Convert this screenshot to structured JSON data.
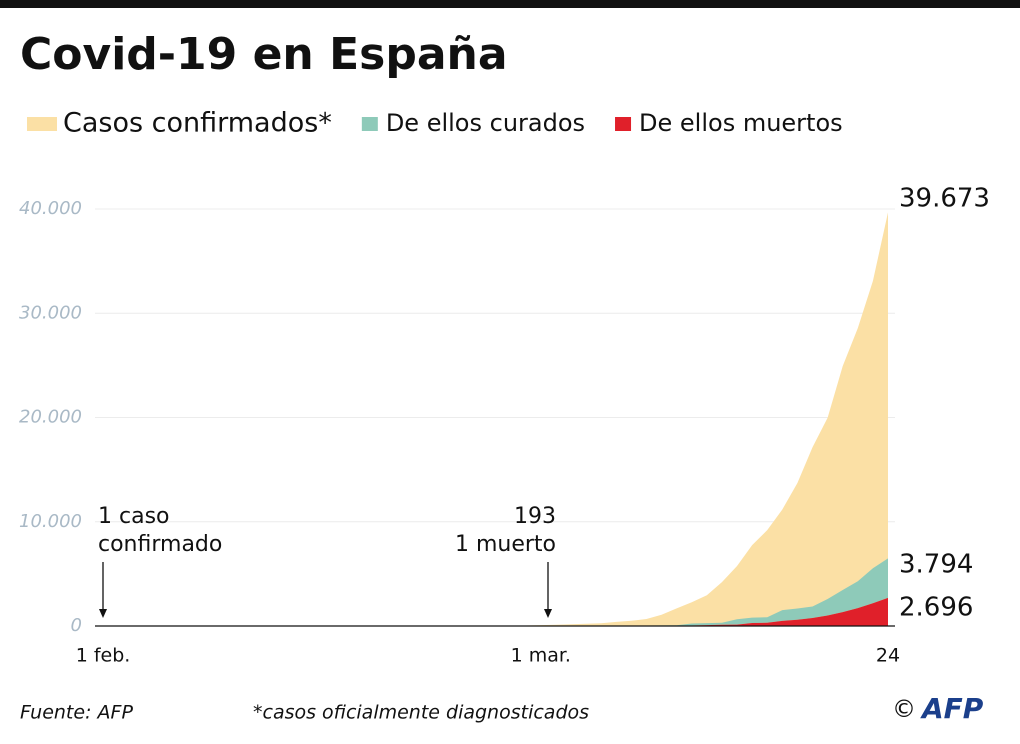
{
  "chart_data": {
    "type": "area",
    "title": "Covid-19 en España",
    "categories": [
      "1 feb.",
      null,
      null,
      null,
      null,
      null,
      null,
      null,
      null,
      null,
      null,
      null,
      null,
      null,
      null,
      null,
      null,
      null,
      null,
      null,
      null,
      null,
      null,
      null,
      null,
      null,
      null,
      null,
      null,
      "1 mar.",
      null,
      null,
      null,
      null,
      null,
      null,
      null,
      null,
      null,
      null,
      null,
      null,
      null,
      null,
      null,
      null,
      null,
      null,
      null,
      null,
      null,
      null,
      "24"
    ],
    "series": [
      {
        "name": "Casos confirmados*",
        "color": "#fbe0a5",
        "values": [
          1,
          1,
          1,
          1,
          1,
          1,
          1,
          1,
          2,
          2,
          2,
          2,
          2,
          2,
          2,
          2,
          2,
          2,
          2,
          2,
          2,
          2,
          2,
          3,
          6,
          13,
          15,
          32,
          45,
          84,
          120,
          165,
          222,
          259,
          400,
          500,
          673,
          1073,
          1695,
          2277,
          2950,
          4209,
          5753,
          7753,
          9191,
          11178,
          13716,
          17147,
          19980,
          24926,
          28572,
          33089,
          39673
        ],
        "value_labels": [
          null,
          null,
          null,
          null,
          null,
          null,
          null,
          null,
          null,
          null,
          null,
          null,
          null,
          null,
          null,
          null,
          null,
          null,
          null,
          null,
          null,
          null,
          null,
          null,
          null,
          null,
          null,
          null,
          null,
          null,
          null,
          null,
          null,
          null,
          null,
          null,
          null,
          null,
          null,
          null,
          null,
          null,
          null,
          null,
          null,
          null,
          null,
          null,
          null,
          null,
          null,
          null,
          "39.673"
        ]
      },
      {
        "name": "De ellos curados",
        "color": "#8ecab9",
        "values": [
          0,
          0,
          0,
          0,
          0,
          0,
          0,
          0,
          0,
          0,
          0,
          0,
          0,
          0,
          0,
          0,
          0,
          0,
          0,
          0,
          0,
          0,
          0,
          0,
          0,
          0,
          0,
          0,
          0,
          2,
          2,
          2,
          2,
          2,
          2,
          30,
          30,
          32,
          32,
          183,
          189,
          193,
          517,
          517,
          530,
          1028,
          1081,
          1107,
          1588,
          2125,
          2575,
          3355,
          3794
        ],
        "value_labels": [
          null,
          null,
          null,
          null,
          null,
          null,
          null,
          null,
          null,
          null,
          null,
          null,
          null,
          null,
          null,
          null,
          null,
          null,
          null,
          null,
          null,
          null,
          null,
          null,
          null,
          null,
          null,
          null,
          null,
          null,
          null,
          null,
          null,
          null,
          null,
          null,
          null,
          null,
          null,
          null,
          null,
          null,
          null,
          null,
          null,
          null,
          null,
          null,
          null,
          null,
          null,
          null,
          "3.794"
        ]
      },
      {
        "name": "De ellos muertos",
        "color": "#e0202a",
        "values": [
          0,
          0,
          0,
          0,
          0,
          0,
          0,
          0,
          0,
          0,
          0,
          0,
          0,
          0,
          0,
          0,
          0,
          0,
          0,
          0,
          0,
          0,
          0,
          0,
          0,
          0,
          0,
          0,
          0,
          0,
          0,
          1,
          2,
          3,
          5,
          10,
          17,
          28,
          35,
          54,
          84,
          120,
          136,
          288,
          309,
          491,
          598,
          767,
          1002,
          1326,
          1720,
          2182,
          2696
        ],
        "value_labels": [
          null,
          null,
          null,
          null,
          null,
          null,
          null,
          null,
          null,
          null,
          null,
          null,
          null,
          null,
          null,
          null,
          null,
          null,
          null,
          null,
          null,
          null,
          null,
          null,
          null,
          null,
          null,
          null,
          null,
          null,
          null,
          null,
          null,
          null,
          null,
          null,
          null,
          null,
          null,
          null,
          null,
          null,
          null,
          null,
          null,
          null,
          null,
          null,
          null,
          null,
          null,
          null,
          "2.696"
        ]
      }
    ],
    "ylim": [
      0,
      40000
    ],
    "yticks": [
      0,
      {
        "value": 10000,
        "label": "10.000"
      },
      {
        "value": 20000,
        "label": "20.000"
      },
      {
        "value": 30000,
        "label": "30.000"
      },
      {
        "value": 40000,
        "label": "40.000"
      }
    ],
    "grid": true,
    "annotations": [
      [
        "1 caso",
        "confirmado"
      ],
      [
        "193",
        "1 muerto"
      ]
    ],
    "source": "Fuente: AFP",
    "footnote": "*casos oficialmente diagnosticados",
    "credit": "©",
    "logo": "AFP"
  }
}
